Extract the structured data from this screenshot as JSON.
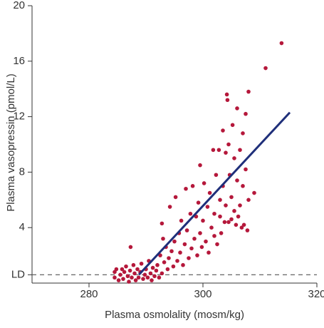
{
  "chart_data": {
    "type": "scatter",
    "x_label": "Plasma osmolality (mosm/kg)",
    "y_label": "Plasma vasopressin (pmol/L)",
    "xlim": [
      270,
      320
    ],
    "ylim": [
      0,
      20
    ],
    "xticks": [
      280,
      300,
      320
    ],
    "yticks": [
      {
        "value": 0.6,
        "label": "LD"
      },
      4,
      8,
      12,
      16,
      20
    ],
    "ld_line": {
      "value": 0.6,
      "dashed": true,
      "color": "#555555"
    },
    "series": [
      {
        "color": "#b5183b",
        "x": [
          284.5,
          284.5,
          284.8,
          285.2,
          285.5,
          285.8,
          286,
          286.2,
          286.5,
          286.8,
          287,
          287.2,
          287.3,
          287.5,
          287.8,
          288,
          288.2,
          288.5,
          288.7,
          289,
          289.2,
          289.5,
          289.8,
          290,
          290.3,
          290.5,
          290.8,
          291,
          291.2,
          291.5,
          291.8,
          292,
          292.3,
          292.5,
          292.8,
          293,
          292.8,
          293.2,
          293.5,
          293.8,
          294,
          294.2,
          294.5,
          294.8,
          295,
          295.2,
          295.5,
          295.8,
          296,
          296.2,
          296.5,
          296.8,
          297,
          297.2,
          297.5,
          297.8,
          298,
          298.2,
          298.5,
          298.8,
          299,
          299.2,
          299.5,
          299.5,
          299.8,
          300,
          300.2,
          300.5,
          300.8,
          301,
          301.2,
          301.5,
          301.8,
          302,
          302,
          302.3,
          302.5,
          302.8,
          303,
          303,
          303.2,
          303.5,
          303.5,
          303.8,
          304,
          304,
          304.2,
          304.3,
          304.5,
          304.5,
          304.7,
          305,
          305,
          305.2,
          305.5,
          305.5,
          305.8,
          306,
          306,
          306.2,
          306.5,
          306.5,
          306.8,
          307,
          307,
          307.2,
          307.5,
          307.5,
          307.8,
          308,
          308,
          309,
          311,
          313.8
        ],
        "values": [
          0.4,
          0.8,
          1.0,
          0.2,
          0.6,
          1.0,
          0.3,
          0.8,
          1.2,
          0.5,
          0.1,
          0.9,
          2.6,
          0.4,
          1.3,
          0.7,
          0.2,
          1.0,
          0.4,
          0.8,
          1.4,
          0.3,
          0.6,
          1.0,
          0.4,
          1.6,
          0.7,
          0.2,
          1.1,
          0.5,
          0.9,
          1.3,
          0.4,
          2.0,
          4.3,
          3.2,
          0.7,
          1.5,
          2.6,
          1.0,
          1.8,
          5.5,
          2.3,
          1.2,
          3.0,
          6.2,
          1.6,
          3.6,
          2.2,
          4.5,
          1.3,
          2.8,
          6.8,
          3.8,
          1.8,
          5.0,
          2.5,
          7.0,
          3.2,
          4.8,
          2.0,
          5.8,
          8.5,
          3.6,
          2.6,
          4.5,
          7.2,
          3.0,
          5.5,
          2.2,
          6.5,
          4.0,
          9.6,
          3.4,
          5.0,
          7.8,
          2.8,
          9.6,
          4.8,
          6.0,
          3.6,
          11.0,
          7.0,
          4.4,
          9.4,
          5.6,
          13.6,
          13.2,
          4.4,
          10.0,
          7.8,
          6.2,
          4.6,
          11.4,
          9.0,
          5.2,
          4.2,
          7.4,
          12.6,
          4.8,
          9.6,
          5.6,
          4.0,
          7.0,
          10.8,
          4.2,
          12.2,
          8.2,
          3.8,
          6.0,
          13.8,
          6.5,
          15.5,
          17.3
        ]
      },
      {
        "type": "line",
        "color": "#1f2f7a",
        "x": [
          288.75,
          315.25
        ],
        "values": [
          0.6,
          12.3
        ]
      }
    ]
  }
}
